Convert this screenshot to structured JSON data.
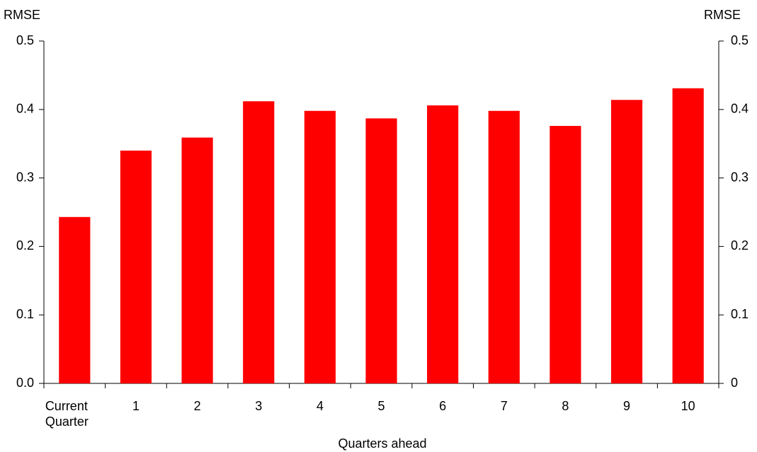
{
  "chart_data": {
    "type": "bar",
    "y_label": "RMSE",
    "y2_label": "RMSE",
    "x_label": "Quarters ahead",
    "categories": [
      "Current Quarter",
      "1",
      "2",
      "3",
      "4",
      "5",
      "6",
      "7",
      "8",
      "9",
      "10"
    ],
    "values": [
      0.243,
      0.34,
      0.359,
      0.412,
      0.398,
      0.387,
      0.406,
      0.398,
      0.376,
      0.414,
      0.431
    ],
    "color": "#ff0000",
    "ylim": [
      0,
      0.5
    ],
    "yticks": [
      {
        "value": 0,
        "label": "0.0"
      },
      0.1,
      0.2,
      0.3,
      0.4,
      0.5
    ],
    "y2lim": [
      0,
      0.5
    ],
    "y2ticks": [
      0,
      0.1,
      0.2,
      0.3,
      0.4,
      0.5
    ],
    "grid": false
  }
}
